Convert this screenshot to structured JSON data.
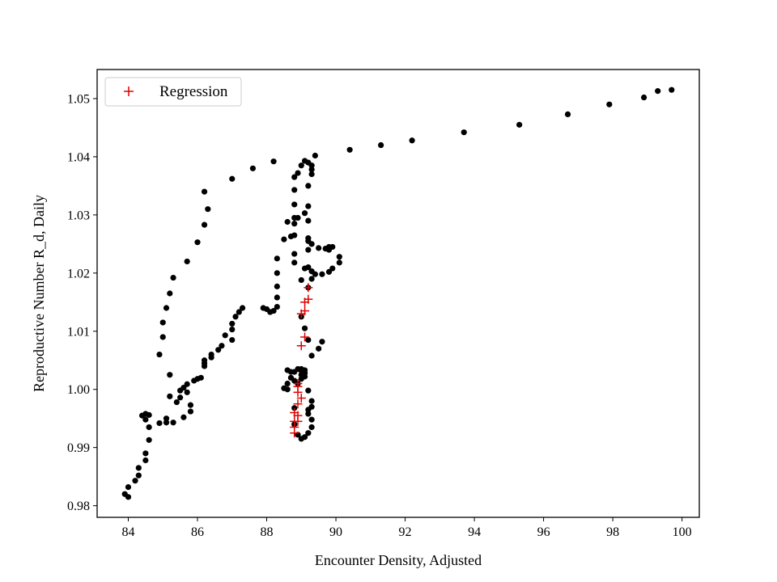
{
  "chart_data": {
    "type": "scatter",
    "title": "",
    "xlabel": "Encounter Density, Adjusted",
    "ylabel": "Reproductive Number R_d, Daily",
    "xlim": [
      83.1,
      100.5
    ],
    "ylim": [
      0.978,
      1.055
    ],
    "xticks": [
      84,
      86,
      88,
      90,
      92,
      94,
      96,
      98,
      100
    ],
    "yticks": [
      0.98,
      0.99,
      1.0,
      1.01,
      1.02,
      1.03,
      1.04,
      1.05
    ],
    "ytick_labels": [
      "0.98",
      "0.99",
      "1.00",
      "1.01",
      "1.02",
      "1.03",
      "1.04",
      "1.05"
    ],
    "grid": false,
    "legend": {
      "position": "top-left",
      "entries": [
        {
          "label": "Regression",
          "marker": "+",
          "color": "#e00000"
        }
      ]
    },
    "series": [
      {
        "name": "observed",
        "marker": "o",
        "color": "#000000",
        "in_legend": false,
        "points": [
          [
            83.9,
            0.982
          ],
          [
            84.0,
            0.9815
          ],
          [
            84.0,
            0.9832
          ],
          [
            84.2,
            0.9843
          ],
          [
            84.3,
            0.9852
          ],
          [
            84.3,
            0.9865
          ],
          [
            84.5,
            0.9878
          ],
          [
            84.5,
            0.989
          ],
          [
            84.6,
            0.9913
          ],
          [
            84.6,
            0.9935
          ],
          [
            84.4,
            0.9955
          ],
          [
            84.5,
            0.9948
          ],
          [
            84.5,
            0.9958
          ],
          [
            84.6,
            0.9956
          ],
          [
            84.9,
            0.9942
          ],
          [
            85.1,
            0.9943
          ],
          [
            85.1,
            0.995
          ],
          [
            85.3,
            0.9943
          ],
          [
            85.2,
            0.9988
          ],
          [
            85.4,
            0.9978
          ],
          [
            85.6,
            0.9952
          ],
          [
            85.5,
            0.9986
          ],
          [
            85.5,
            0.9998
          ],
          [
            85.6,
            1.0003
          ],
          [
            85.7,
            0.9995
          ],
          [
            85.7,
            1.0009
          ],
          [
            85.8,
            0.9962
          ],
          [
            85.8,
            0.9973
          ],
          [
            85.9,
            1.0015
          ],
          [
            86.0,
            1.0018
          ],
          [
            86.1,
            1.002
          ],
          [
            86.2,
            1.004
          ],
          [
            86.2,
            1.0045
          ],
          [
            86.2,
            1.005
          ],
          [
            86.4,
            1.0055
          ],
          [
            86.4,
            1.006
          ],
          [
            86.6,
            1.0068
          ],
          [
            86.7,
            1.0075
          ],
          [
            86.8,
            1.0093
          ],
          [
            87.0,
            1.0085
          ],
          [
            87.0,
            1.0103
          ],
          [
            87.0,
            1.0113
          ],
          [
            87.1,
            1.0125
          ],
          [
            87.2,
            1.0133
          ],
          [
            87.3,
            1.014
          ],
          [
            87.9,
            1.014
          ],
          [
            88.0,
            1.0138
          ],
          [
            88.1,
            1.0133
          ],
          [
            88.2,
            1.0135
          ],
          [
            88.3,
            1.0142
          ],
          [
            88.3,
            1.0158
          ],
          [
            88.3,
            1.0177
          ],
          [
            88.3,
            1.02
          ],
          [
            88.3,
            1.0225
          ],
          [
            88.5,
            1.0258
          ],
          [
            88.6,
            1.0288
          ],
          [
            88.7,
            1.0263
          ],
          [
            88.8,
            1.0285
          ],
          [
            88.9,
            1.0295
          ],
          [
            89.1,
            1.0303
          ],
          [
            89.2,
            1.0255
          ],
          [
            89.2,
            1.026
          ],
          [
            89.3,
            1.025
          ],
          [
            89.5,
            1.0243
          ],
          [
            89.7,
            1.0242
          ],
          [
            89.8,
            1.0245
          ],
          [
            89.8,
            1.024
          ],
          [
            89.9,
            1.0245
          ],
          [
            90.1,
            1.0228
          ],
          [
            90.1,
            1.0218
          ],
          [
            89.9,
            1.0208
          ],
          [
            89.8,
            1.0202
          ],
          [
            89.6,
            1.0198
          ],
          [
            89.4,
            1.0198
          ],
          [
            89.3,
            1.0203
          ],
          [
            89.1,
            1.0208
          ],
          [
            89.2,
            1.021
          ],
          [
            89.2,
            1.024
          ],
          [
            89.2,
            1.029
          ],
          [
            89.2,
            1.0315
          ],
          [
            89.2,
            1.035
          ],
          [
            89.3,
            1.037
          ],
          [
            89.3,
            1.0378
          ],
          [
            89.3,
            1.0385
          ],
          [
            89.2,
            1.039
          ],
          [
            89.1,
            1.0393
          ],
          [
            89.0,
            1.0385
          ],
          [
            88.9,
            1.0372
          ],
          [
            88.8,
            1.0365
          ],
          [
            88.8,
            1.0343
          ],
          [
            88.8,
            1.0318
          ],
          [
            88.8,
            1.0295
          ],
          [
            88.8,
            1.0265
          ],
          [
            88.8,
            1.0233
          ],
          [
            88.8,
            1.0218
          ],
          [
            89.0,
            1.0188
          ],
          [
            89.2,
            1.0175
          ],
          [
            89.3,
            1.019
          ],
          [
            89.0,
            1.0125
          ],
          [
            89.1,
            1.0105
          ],
          [
            89.2,
            1.0085
          ],
          [
            89.3,
            1.0058
          ],
          [
            89.5,
            1.007
          ],
          [
            89.6,
            1.0082
          ],
          [
            89.0,
            1.0032
          ],
          [
            89.0,
            1.0025
          ],
          [
            89.1,
            1.0028
          ],
          [
            89.1,
            1.0022
          ],
          [
            89.0,
            1.0018
          ],
          [
            88.9,
            1.001
          ],
          [
            88.8,
            1.0015
          ],
          [
            88.7,
            1.002
          ],
          [
            88.6,
            1.001
          ],
          [
            88.6,
            1.0033
          ],
          [
            88.7,
            1.003
          ],
          [
            88.8,
            1.003
          ],
          [
            88.9,
            1.0035
          ],
          [
            89.0,
            1.0035
          ],
          [
            89.1,
            1.0033
          ],
          [
            89.1,
            1.0028
          ],
          [
            88.6,
            1.0
          ],
          [
            88.5,
            1.0002
          ],
          [
            89.2,
            0.9998
          ],
          [
            89.3,
            0.998
          ],
          [
            89.3,
            0.997
          ],
          [
            89.2,
            0.9965
          ],
          [
            89.2,
            0.9958
          ],
          [
            89.3,
            0.9948
          ],
          [
            89.3,
            0.9935
          ],
          [
            89.2,
            0.9925
          ],
          [
            89.1,
            0.9918
          ],
          [
            89.0,
            0.9915
          ],
          [
            88.9,
            0.9922
          ],
          [
            88.8,
            0.994
          ],
          [
            88.8,
            0.9968
          ],
          [
            88.2,
            1.0392
          ],
          [
            87.6,
            1.038
          ],
          [
            87.0,
            1.0362
          ],
          [
            86.2,
            1.034
          ],
          [
            86.3,
            1.031
          ],
          [
            86.2,
            1.0283
          ],
          [
            86.0,
            1.0253
          ],
          [
            85.7,
            1.022
          ],
          [
            85.3,
            1.0192
          ],
          [
            85.2,
            1.0165
          ],
          [
            85.1,
            1.014
          ],
          [
            85.0,
            1.0115
          ],
          [
            85.0,
            1.009
          ],
          [
            84.9,
            1.006
          ],
          [
            85.2,
            1.0025
          ],
          [
            89.4,
            1.0402
          ],
          [
            90.4,
            1.0412
          ],
          [
            91.3,
            1.042
          ],
          [
            92.2,
            1.0428
          ],
          [
            93.7,
            1.0442
          ],
          [
            95.3,
            1.0455
          ],
          [
            96.7,
            1.0473
          ],
          [
            97.9,
            1.049
          ],
          [
            98.9,
            1.0502
          ],
          [
            99.3,
            1.0513
          ],
          [
            99.7,
            1.0515
          ]
        ]
      },
      {
        "name": "Regression",
        "marker": "+",
        "color": "#e00000",
        "in_legend": true,
        "points": [
          [
            88.8,
            0.9925
          ],
          [
            88.8,
            0.9935
          ],
          [
            88.8,
            0.9945
          ],
          [
            88.9,
            0.9945
          ],
          [
            88.9,
            0.9955
          ],
          [
            88.8,
            0.996
          ],
          [
            88.9,
            0.9975
          ],
          [
            89.0,
            0.9985
          ],
          [
            88.9,
            0.9995
          ],
          [
            88.9,
            1.0005
          ],
          [
            88.9,
            1.001
          ],
          [
            89.0,
            1.0075
          ],
          [
            89.1,
            1.009
          ],
          [
            89.0,
            1.013
          ],
          [
            89.1,
            1.0135
          ],
          [
            89.1,
            1.015
          ],
          [
            89.2,
            1.0155
          ],
          [
            89.2,
            1.0175
          ]
        ]
      }
    ]
  }
}
